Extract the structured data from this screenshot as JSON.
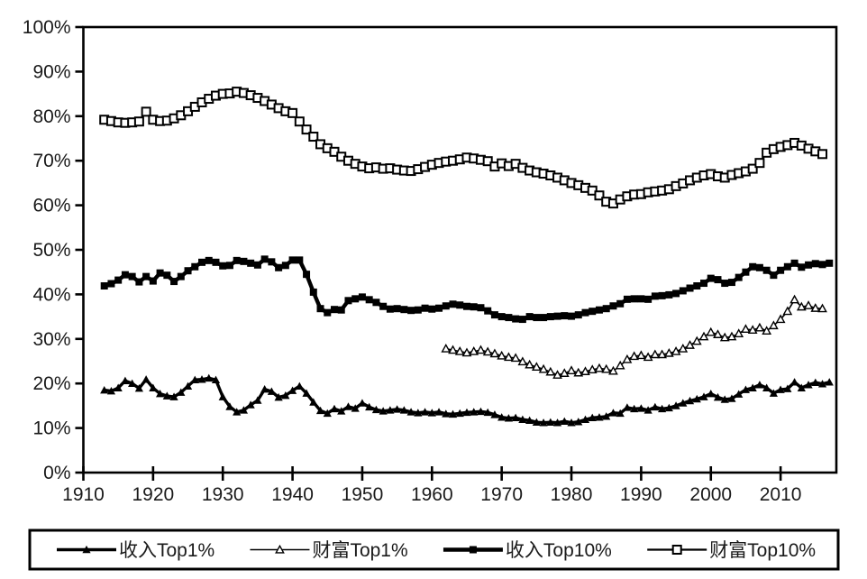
{
  "chart_data": {
    "type": "line",
    "title": "",
    "xlabel": "",
    "ylabel": "",
    "grid": false,
    "background_color": "#ffffff",
    "line_color": "#000000",
    "x_axis": {
      "range": [
        1910,
        2018
      ],
      "tick_years": [
        1910,
        1920,
        1930,
        1940,
        1950,
        1960,
        1970,
        1980,
        1990,
        2000,
        2010
      ],
      "tick_labels": [
        "1910",
        "1920",
        "1930",
        "1940",
        "1950",
        "1960",
        "1970",
        "1980",
        "1990",
        "2000",
        "2010"
      ]
    },
    "y_axis": {
      "range": [
        0,
        100
      ],
      "tick_step": 10,
      "tick_labels": [
        "0%",
        "10%",
        "20%",
        "30%",
        "40%",
        "50%",
        "60%",
        "70%",
        "80%",
        "90%",
        "100%"
      ]
    },
    "legend": {
      "position": "bottom",
      "border_color": "#000000"
    },
    "series": [
      {
        "name": "收入Top1%",
        "marker": "triangle-filled",
        "line_width": 3.4,
        "start_year": 1913,
        "values": [
          18.5,
          18.3,
          19.0,
          20.6,
          20.0,
          18.9,
          20.9,
          19.0,
          17.7,
          17.2,
          17.0,
          18.0,
          19.4,
          20.8,
          20.9,
          21.2,
          20.8,
          17.0,
          14.8,
          13.6,
          14.0,
          15.2,
          16.2,
          18.7,
          18.2,
          16.9,
          17.3,
          18.4,
          19.4,
          17.8,
          15.8,
          13.9,
          13.3,
          14.3,
          13.8,
          14.8,
          14.4,
          15.6,
          14.7,
          14.1,
          13.8,
          14.0,
          14.2,
          14.0,
          13.6,
          13.4,
          13.6,
          13.4,
          13.6,
          13.2,
          13.1,
          13.3,
          13.5,
          13.6,
          13.7,
          13.5,
          13.0,
          12.4,
          12.2,
          12.3,
          11.9,
          11.7,
          11.3,
          11.2,
          11.3,
          11.2,
          11.5,
          11.2,
          11.4,
          11.9,
          12.3,
          12.4,
          12.6,
          13.4,
          13.3,
          14.6,
          14.3,
          14.4,
          14.0,
          14.7,
          14.3,
          14.5,
          15.0,
          15.6,
          16.1,
          16.5,
          17.0,
          17.7,
          16.9,
          16.4,
          16.6,
          17.6,
          18.6,
          19.0,
          19.7,
          19.0,
          17.8,
          18.6,
          18.8,
          20.3,
          19.0,
          19.7,
          20.2,
          19.9,
          20.3
        ]
      },
      {
        "name": "财富Top1%",
        "marker": "triangle-open",
        "line_width": 1.6,
        "start_year": 1962,
        "values": [
          27.8,
          27.5,
          27.2,
          26.9,
          27.2,
          27.5,
          27.1,
          26.7,
          26.2,
          25.9,
          25.7,
          24.9,
          24.2,
          23.7,
          23.2,
          22.6,
          21.9,
          22.3,
          22.9,
          22.4,
          22.7,
          23.1,
          23.4,
          23.2,
          22.8,
          24.0,
          25.4,
          26.1,
          26.3,
          25.9,
          26.5,
          26.5,
          26.8,
          27.2,
          27.8,
          28.6,
          29.5,
          30.5,
          31.5,
          31.0,
          30.3,
          30.5,
          31.2,
          32.2,
          32.0,
          32.5,
          31.8,
          33.0,
          34.4,
          36.2,
          38.8,
          37.2,
          37.5,
          36.9,
          36.8
        ]
      },
      {
        "name": "收入Top10%",
        "marker": "square-filled",
        "line_width": 4.4,
        "start_year": 1913,
        "values": [
          41.9,
          42.4,
          43.2,
          44.4,
          44.0,
          42.8,
          44.0,
          43.0,
          44.8,
          44.3,
          42.9,
          44.0,
          45.3,
          46.2,
          47.2,
          47.6,
          47.2,
          46.4,
          46.5,
          47.6,
          47.4,
          47.0,
          46.6,
          47.9,
          47.3,
          46.0,
          46.5,
          47.7,
          47.7,
          44.5,
          40.5,
          36.8,
          35.9,
          36.6,
          36.5,
          38.6,
          39.0,
          39.4,
          38.8,
          38.2,
          37.3,
          36.7,
          36.8,
          36.6,
          36.4,
          36.5,
          36.9,
          36.7,
          36.9,
          37.4,
          37.8,
          37.6,
          37.3,
          37.2,
          37.0,
          36.3,
          35.4,
          35.0,
          34.8,
          34.5,
          34.4,
          35.0,
          34.8,
          34.8,
          35.0,
          35.1,
          35.2,
          35.1,
          35.4,
          35.9,
          36.2,
          36.5,
          36.8,
          37.4,
          37.9,
          38.9,
          39.0,
          39.0,
          38.9,
          39.6,
          39.7,
          39.9,
          40.2,
          40.8,
          41.4,
          41.9,
          42.5,
          43.6,
          43.3,
          42.5,
          42.7,
          43.8,
          45.0,
          46.2,
          46.0,
          45.4,
          44.3,
          45.4,
          46.2,
          47.0,
          46.1,
          46.6,
          46.9,
          46.7,
          47.0
        ]
      },
      {
        "name": "财富Top10%",
        "marker": "square-open",
        "line_width": 2.2,
        "start_year": 1913,
        "values": [
          79.2,
          78.9,
          78.6,
          78.5,
          78.6,
          78.8,
          81.0,
          79.2,
          78.9,
          79.0,
          79.5,
          80.2,
          81.1,
          82.1,
          83.1,
          83.9,
          84.6,
          85.0,
          85.1,
          85.5,
          85.2,
          84.7,
          84.1,
          83.4,
          82.6,
          81.8,
          81.1,
          80.7,
          78.8,
          77.0,
          75.4,
          73.7,
          72.8,
          72.0,
          70.9,
          70.0,
          69.3,
          68.7,
          68.3,
          68.5,
          68.2,
          68.3,
          68.0,
          67.8,
          67.7,
          68.1,
          68.6,
          69.1,
          69.5,
          69.8,
          70.0,
          70.3,
          70.7,
          70.5,
          70.2,
          69.9,
          68.7,
          69.4,
          68.8,
          69.3,
          68.4,
          67.8,
          67.4,
          67.1,
          66.7,
          66.2,
          65.6,
          65.0,
          64.5,
          63.9,
          63.3,
          62.2,
          60.8,
          60.4,
          61.3,
          62.0,
          62.4,
          62.5,
          62.9,
          63.1,
          63.3,
          63.6,
          64.3,
          64.9,
          65.6,
          66.2,
          66.7,
          67.0,
          66.5,
          66.2,
          66.8,
          67.2,
          67.6,
          68.2,
          69.5,
          71.8,
          72.6,
          73.1,
          73.5,
          74.0,
          73.4,
          72.7,
          72.1,
          71.5
        ]
      }
    ]
  }
}
